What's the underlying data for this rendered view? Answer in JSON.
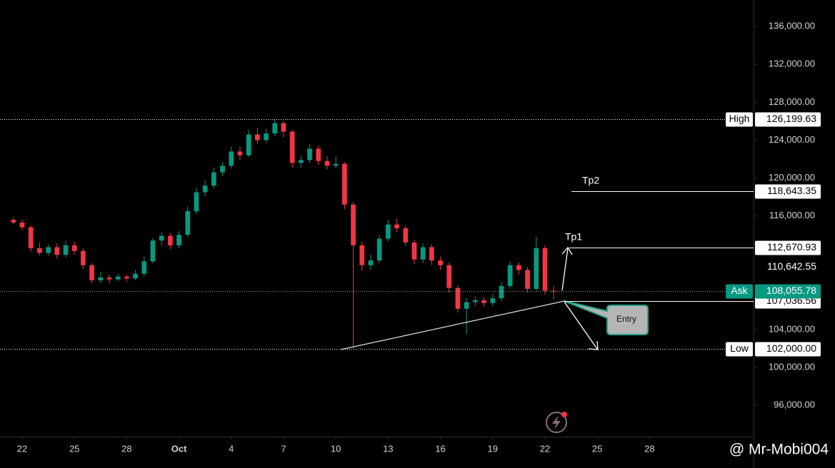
{
  "chart_data": {
    "type": "candlestick",
    "x": [
      -0.5,
      0,
      0.5,
      1,
      1.5,
      2,
      2.5,
      3,
      3.5,
      4,
      4.5,
      5,
      5.5,
      6,
      6.5,
      7,
      7.5,
      8,
      8.5,
      9,
      9.5,
      10,
      10.5,
      11,
      11.5,
      12,
      12.5,
      13,
      13.5,
      14,
      14.5,
      15,
      15.5,
      16,
      16.5,
      17,
      17.5,
      18,
      18.5,
      19,
      19.5,
      20,
      20.5,
      21,
      21.5,
      22,
      22.5,
      23,
      23.5,
      24,
      24.5,
      25,
      25.5,
      26,
      26.5,
      27,
      27.5,
      28,
      28.5,
      29,
      29.5,
      30,
      30.5
    ],
    "open": [
      115600,
      115300,
      114800,
      112600,
      112100,
      112700,
      111900,
      112900,
      112300,
      110800,
      109200,
      109500,
      109300,
      109600,
      109400,
      109900,
      111200,
      113400,
      113900,
      112900,
      114000,
      116500,
      118500,
      119200,
      120600,
      121300,
      122800,
      122400,
      124600,
      124000,
      124700,
      125800,
      124900,
      121600,
      121900,
      123100,
      121800,
      121300,
      121500,
      117200,
      112900,
      110800,
      111300,
      113600,
      115100,
      114700,
      113200,
      111400,
      112700,
      111300,
      110800,
      108400,
      106200,
      106900,
      107100,
      106800,
      107300,
      108600,
      110800,
      110300,
      108300,
      112600,
      108100
    ],
    "close": [
      115300,
      114800,
      112600,
      112100,
      112700,
      111900,
      112900,
      112300,
      110800,
      109200,
      109500,
      109300,
      109600,
      109400,
      109900,
      111200,
      113400,
      113900,
      112900,
      114000,
      116500,
      118500,
      119200,
      120600,
      121300,
      122800,
      122400,
      124600,
      124000,
      124700,
      125800,
      124900,
      121600,
      121900,
      123100,
      121800,
      121300,
      121500,
      117200,
      112900,
      110800,
      111300,
      113600,
      115100,
      114700,
      113200,
      111400,
      112700,
      111300,
      110800,
      108400,
      106200,
      106900,
      107100,
      106800,
      107300,
      108600,
      110800,
      110300,
      108300,
      112600,
      108100,
      108055.78
    ],
    "high": [
      115900,
      115600,
      115000,
      113200,
      113000,
      113100,
      113400,
      113300,
      112600,
      111000,
      110100,
      109800,
      109900,
      109800,
      110300,
      111700,
      113700,
      114300,
      114200,
      114400,
      117000,
      119000,
      119800,
      121100,
      121700,
      123300,
      123300,
      125100,
      125300,
      125200,
      126199.63,
      126000,
      125100,
      122400,
      123600,
      123400,
      122300,
      122300,
      121700,
      117500,
      113300,
      111900,
      114000,
      115600,
      115700,
      115000,
      113500,
      113100,
      113000,
      111700,
      111100,
      108700,
      107300,
      107500,
      107400,
      107700,
      109000,
      111200,
      111100,
      110600,
      113800,
      112900,
      108600
    ],
    "low": [
      115100,
      114500,
      112200,
      111800,
      111800,
      111500,
      111600,
      111900,
      110400,
      108900,
      108900,
      108900,
      109100,
      109100,
      109200,
      109600,
      111000,
      112900,
      112500,
      112600,
      113800,
      116200,
      118100,
      118900,
      120200,
      121000,
      121900,
      122200,
      123600,
      123700,
      124400,
      124300,
      121100,
      121100,
      121600,
      121400,
      120900,
      121000,
      116700,
      102000,
      110200,
      110300,
      111000,
      113300,
      114300,
      112800,
      110900,
      111000,
      110800,
      110300,
      107900,
      105800,
      103500,
      106500,
      106400,
      106500,
      107000,
      108300,
      109800,
      107900,
      108000,
      107700,
      107200
    ],
    "up_color": "#089981",
    "down_color": "#f23645",
    "xlim": [
      -1.27,
      41.97
    ],
    "xticks": [
      {
        "value": 0,
        "label": "22"
      },
      {
        "value": 3,
        "label": "25"
      },
      {
        "value": 6,
        "label": "28"
      },
      {
        "value": 9,
        "label": "Oct"
      },
      {
        "value": 12,
        "label": "4"
      },
      {
        "value": 15,
        "label": "7"
      },
      {
        "value": 18,
        "label": "10"
      },
      {
        "value": 21,
        "label": "13"
      },
      {
        "value": 24,
        "label": "16"
      },
      {
        "value": 27,
        "label": "19"
      },
      {
        "value": 30,
        "label": "22"
      },
      {
        "value": 33,
        "label": "25"
      },
      {
        "value": 36,
        "label": "28"
      }
    ],
    "ylim": [
      92700,
      138800
    ],
    "yticks": [
      {
        "value": 96000,
        "label": "96,000.00"
      },
      {
        "value": 100000,
        "label": "100,000.00"
      },
      {
        "value": 104000,
        "label": "104,000.00"
      },
      {
        "value": 116000,
        "label": "116,000.00"
      },
      {
        "value": 120000,
        "label": "120,000.00"
      },
      {
        "value": 124000,
        "label": "124,000.00"
      },
      {
        "value": 128000,
        "label": "128,000.00"
      },
      {
        "value": 132000,
        "label": "132,000.00"
      },
      {
        "value": 136000,
        "label": "136,000.00"
      }
    ],
    "price_lines": [
      {
        "name": "High",
        "value": 126199.63,
        "value_label": "126,199.63",
        "style": "dotted",
        "box": "white"
      },
      {
        "value": 118643.35,
        "value_label": "118,643.35",
        "style": "solid",
        "box": "white"
      },
      {
        "value": 112670.93,
        "value_label": "112,670.93",
        "style": "solid",
        "box": "white"
      },
      {
        "value": 110642.55,
        "value_label": "110,642.55",
        "style": "none",
        "box": "none"
      },
      {
        "value": 107036.56,
        "value_label": "107,036.56",
        "style": "solid",
        "box": "white"
      },
      {
        "name": "Ask",
        "value": 108055.78,
        "value_label": "108,055.78",
        "style": "dotted",
        "box": "teal"
      },
      {
        "name": "Low",
        "value": 102000,
        "value_label": "102,000.00",
        "style": "dotted",
        "box": "white"
      }
    ],
    "annotations": [
      "Tp2",
      "Tp1",
      "Entry"
    ],
    "watermark": "@ Mr-Mobi004"
  }
}
